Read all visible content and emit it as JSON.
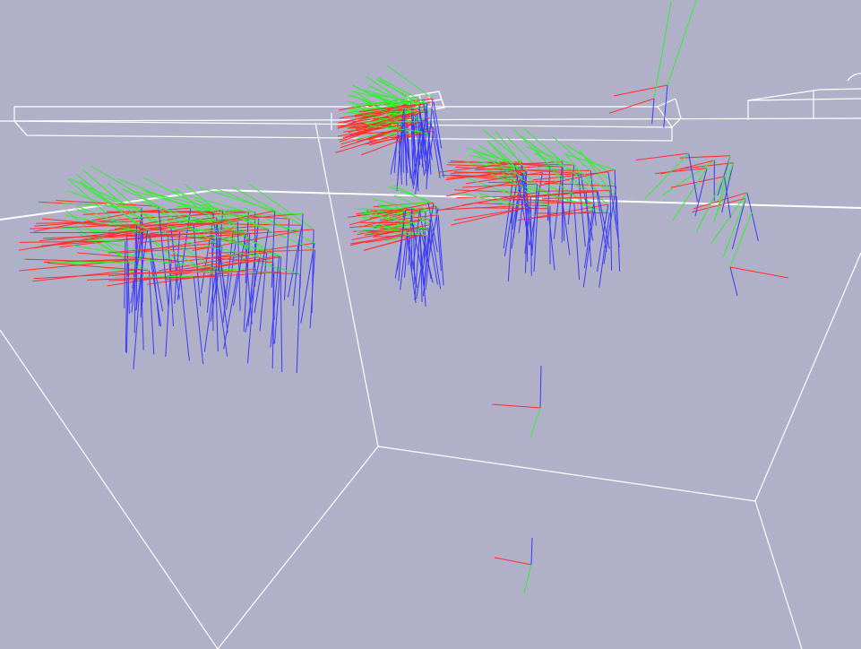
{
  "viewport": {
    "background": "#b0b0c8",
    "wire_color": "#ffffff",
    "axis_colors": {
      "x": "#ff3030",
      "y": "#33ee33",
      "z": "#3a3aff"
    }
  },
  "scene": {
    "description_icons": [
      "wireframe-room",
      "pose-axis-triad",
      "camera-frustum"
    ]
  }
}
